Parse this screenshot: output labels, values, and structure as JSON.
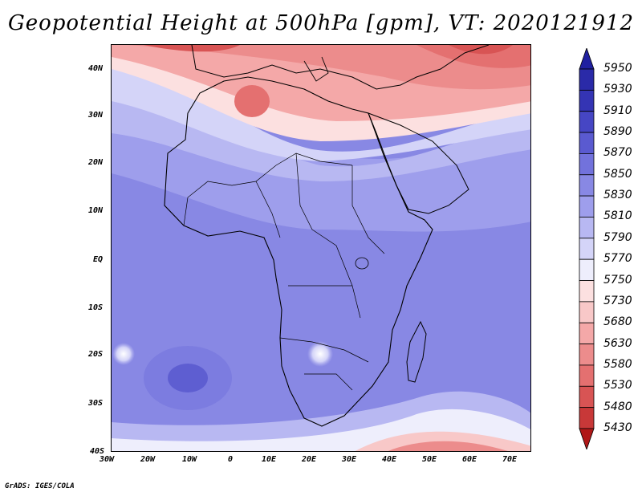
{
  "title": "Geopotential Height at 500hPa [gpm], VT: 2020121912",
  "footer": "GrADS: IGES/COLA",
  "lat_labels": [
    "40N",
    "30N",
    "20N",
    "10N",
    "EQ",
    "10S",
    "20S",
    "30S",
    "40S"
  ],
  "lon_labels": [
    "30W",
    "20W",
    "10W",
    "0",
    "10E",
    "20E",
    "30E",
    "40E",
    "50E",
    "60E",
    "70E"
  ],
  "colorbar": {
    "levels": [
      "5950",
      "5930",
      "5910",
      "5890",
      "5870",
      "5850",
      "5830",
      "5810",
      "5790",
      "5770",
      "5750",
      "5730",
      "5680",
      "5630",
      "5580",
      "5530",
      "5480",
      "5430"
    ],
    "colors": [
      "#2a2aa8",
      "#3434b4",
      "#4646c4",
      "#5a5ad0",
      "#7272dc",
      "#8888e4",
      "#9e9eec",
      "#b8b8f2",
      "#d4d4f8",
      "#eeeefc",
      "#fce0e0",
      "#f8c8c8",
      "#f4a8a8",
      "#ec8c8c",
      "#e47070",
      "#d85454",
      "#c83838",
      "#b82222"
    ],
    "top_color": "#2020a0",
    "bottom_color": "#b01818"
  }
}
